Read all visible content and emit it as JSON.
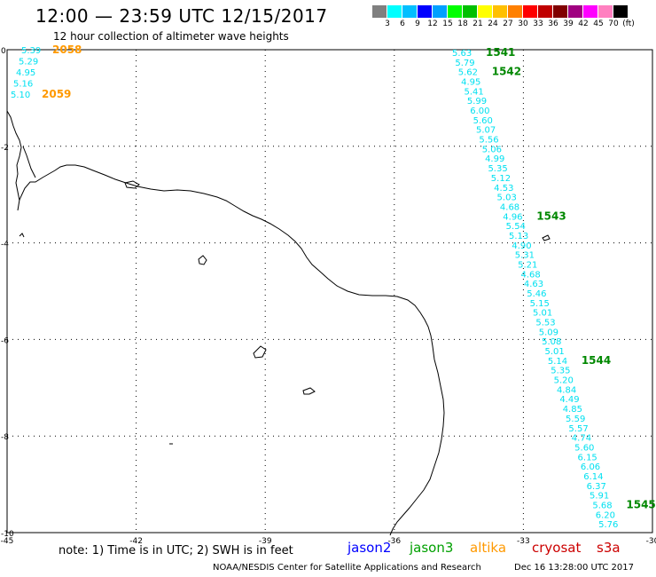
{
  "title": "12:00 — 23:59 UTC 12/15/2017",
  "subtitle": "12 hour collection of altimeter wave heights",
  "color_scale": {
    "colors": [
      "#808080",
      "#00ffff",
      "#00bfff",
      "#0000ff",
      "#00a0ff",
      "#00ff00",
      "#00c000",
      "#ffff00",
      "#ffc000",
      "#ff8000",
      "#ff0000",
      "#c00000",
      "#800000",
      "#a00080",
      "#ff00ff",
      "#ff80c0",
      "#000000"
    ],
    "labels": [
      "3",
      "6",
      "9",
      "12",
      "15",
      "18",
      "21",
      "24",
      "27",
      "30",
      "33",
      "36",
      "39",
      "42",
      "45",
      "70",
      "(ft)"
    ]
  },
  "map": {
    "x_ticks": [
      "-45",
      "-42",
      "-39",
      "-36",
      "-33",
      "-30"
    ],
    "y_ticks": [
      "0",
      "-2",
      "-4",
      "-6",
      "-8",
      "-10"
    ],
    "satellite_colors": {
      "jason2": "#0000ff",
      "jason3": "#00a000",
      "altika": "#ff9900",
      "cryosat": "#cc0000",
      "s3a": "#cc0000"
    },
    "track_west": {
      "swh": [
        "5.39",
        "5.29",
        "4.95",
        "5.16",
        "5.10"
      ],
      "times": [
        {
          "label": "2058",
          "index": 0
        },
        {
          "label": "2059",
          "index": 4
        }
      ]
    },
    "track_east": {
      "swh": [
        "5.63",
        "5.79",
        "5.62",
        "4.95",
        "5.41",
        "5.99",
        "6.00",
        "5.60",
        "5.07",
        "5.56",
        "5.06",
        "4.99",
        "5.35",
        "5.12",
        "4.53",
        "5.03",
        "4.68",
        "4.96",
        "5.54",
        "5.13",
        "4.90",
        "5.31",
        "5.21",
        "4.68",
        "4.63",
        "5.46",
        "5.15",
        "5.01",
        "5.53",
        "5.09",
        "5.08",
        "5.01",
        "5.14",
        "5.35",
        "5.20",
        "4.84",
        "4.49",
        "4.85",
        "5.59",
        "5.57",
        "4.74",
        "5.60",
        "6.15",
        "6.06",
        "6.14",
        "6.37",
        "5.91",
        "5.68",
        "6.20",
        "5.76"
      ],
      "times": [
        {
          "label": "1541",
          "index": 0
        },
        {
          "label": "1542",
          "index": 2
        },
        {
          "label": "1543",
          "index": 17
        },
        {
          "label": "1544",
          "index": 32
        },
        {
          "label": "1545",
          "index": 47
        }
      ]
    }
  },
  "note": "note: 1) Time is in UTC; 2) SWH is in feet",
  "legend": [
    {
      "name": "jason2",
      "color": "#0000ff"
    },
    {
      "name": "jason3",
      "color": "#00a000"
    },
    {
      "name": "altika",
      "color": "#ff9900"
    },
    {
      "name": "cryosat",
      "color": "#cc0000"
    },
    {
      "name": "s3a",
      "color": "#cc0000"
    }
  ],
  "credit": "NOAA/NESDIS Center for Satellite Applications and Research",
  "timestamp": "Dec 16 13:28:00 UTC 2017"
}
